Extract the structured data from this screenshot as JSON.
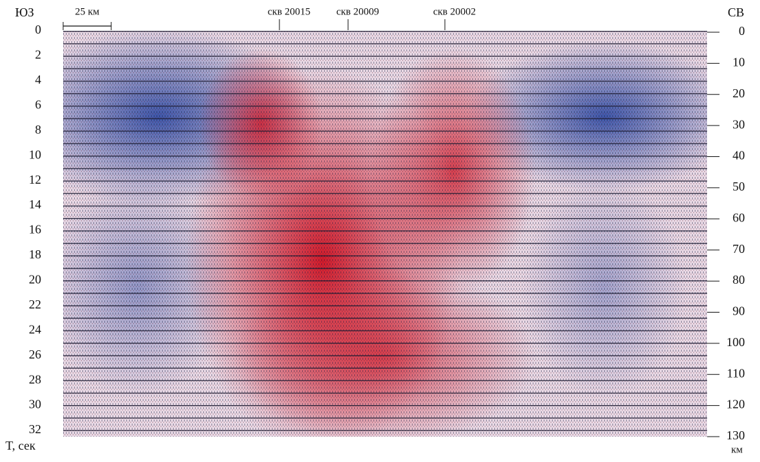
{
  "corner_labels": {
    "left": "ЮЗ",
    "right": "СВ"
  },
  "scale_bar": "25 км",
  "wells": [
    "скв 20015",
    "скв 20009",
    "скв 20002"
  ],
  "left_axis": {
    "label": "T, сек",
    "ticks": [
      "0",
      "2",
      "4",
      "6",
      "8",
      "10",
      "12",
      "14",
      "16",
      "18",
      "20",
      "22",
      "24",
      "26",
      "28",
      "30",
      "32"
    ]
  },
  "right_axis": {
    "label": "км",
    "ticks": [
      "0",
      "10",
      "20",
      "30",
      "40",
      "50",
      "60",
      "70",
      "80",
      "90",
      "100",
      "110",
      "120",
      "130"
    ]
  }
}
